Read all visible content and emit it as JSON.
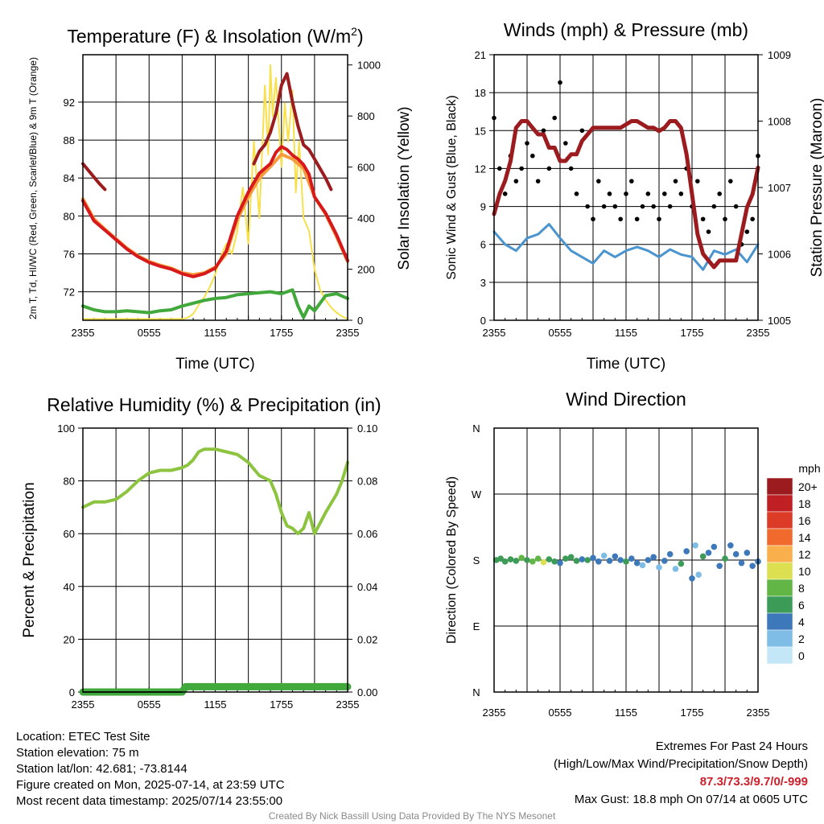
{
  "chart_data": [
    {
      "type": "line",
      "title": "Temperature (F) & Insolation (W/m²)",
      "xlabel": "Time (UTC)",
      "ylabel": "2m T, Td, HI/WC (Red, Green, Scarlet/Blue) & 9m T (Orange)",
      "ylabel_right": "Solar Insolation (Yellow)",
      "x_ticks": [
        "2355",
        "0555",
        "1155",
        "1755",
        "2355"
      ],
      "y_ticks": [
        72,
        76,
        80,
        84,
        88,
        92
      ],
      "ylim": [
        69,
        97
      ],
      "y2_ticks": [
        0,
        200,
        400,
        600,
        800,
        1000
      ],
      "y2lim": [
        0,
        1040
      ],
      "series": [
        {
          "name": "2m T",
          "color": "#d7191c",
          "axis": "left",
          "x": [
            0,
            1,
            2,
            3,
            4,
            5,
            6,
            7,
            8,
            9,
            10,
            11,
            12,
            13,
            14,
            15,
            16,
            17,
            17.5,
            18,
            18.5,
            19,
            19.5,
            20,
            20.5,
            21,
            22,
            23,
            24
          ],
          "values": [
            81.6,
            79.5,
            78.5,
            77.5,
            76.5,
            75.7,
            75.1,
            74.7,
            74.4,
            73.9,
            73.6,
            73.9,
            74.5,
            76.3,
            80.0,
            82.5,
            84.5,
            85.5,
            86.7,
            87.3,
            87.0,
            86.4,
            86.0,
            85.4,
            84.4,
            82.0,
            80.3,
            78.0,
            75.3
          ]
        },
        {
          "name": "9m T",
          "color": "#f59b3c",
          "axis": "left",
          "x": [
            0,
            1,
            2,
            3,
            4,
            5,
            6,
            7,
            8,
            9,
            10,
            11,
            12,
            13,
            14,
            15,
            16,
            17,
            18,
            19,
            20,
            21,
            22,
            23,
            24
          ],
          "values": [
            81.8,
            79.7,
            78.6,
            77.6,
            76.6,
            75.8,
            75.2,
            74.8,
            74.5,
            74.0,
            73.8,
            74.0,
            74.6,
            76.0,
            79.6,
            82.0,
            84.0,
            85.2,
            86.5,
            86.0,
            85.0,
            82.0,
            80.2,
            77.8,
            75.2
          ]
        },
        {
          "name": "Td",
          "color": "#41a83b",
          "axis": "left",
          "x": [
            0,
            0.5,
            1,
            2,
            3,
            4,
            5,
            6,
            7,
            8,
            9,
            10,
            11,
            12,
            13,
            14,
            15,
            16,
            17,
            18,
            19,
            19.5,
            20,
            20.5,
            21,
            22,
            23,
            24
          ],
          "values": [
            70.5,
            70.3,
            70.1,
            69.9,
            69.9,
            70.0,
            69.9,
            69.8,
            70.0,
            70.1,
            70.5,
            70.8,
            71.1,
            71.3,
            71.4,
            71.7,
            71.8,
            71.9,
            72.0,
            71.8,
            72.2,
            70.5,
            69.3,
            70.5,
            70.0,
            71.6,
            71.8,
            71.3
          ]
        },
        {
          "name": "HI",
          "color": "#9b1b1f",
          "axis": "left",
          "x": [
            0,
            0.5,
            1,
            1.5,
            2,
            15.5,
            16,
            16.5,
            17,
            17.5,
            18,
            18.5,
            19,
            19.5,
            20,
            20.5,
            21,
            21.5,
            22,
            22.5
          ],
          "values": [
            85.5,
            84.8,
            84.1,
            83.4,
            82.8,
            85.5,
            86.8,
            87.5,
            88.8,
            90.8,
            93.8,
            95.0,
            92.0,
            89.5,
            87.5,
            87.0,
            86.0,
            85.0,
            84.0,
            82.8
          ]
        },
        {
          "name": "Solar Insolation",
          "color": "#f7e04a",
          "axis": "right",
          "x": [
            0,
            1,
            2,
            3,
            4,
            5,
            6,
            7,
            8,
            9,
            9.5,
            10,
            10.5,
            11,
            11.5,
            12,
            12.5,
            13,
            13.5,
            14,
            14.5,
            15,
            15.5,
            16,
            16.5,
            16.8,
            17,
            17.2,
            17.5,
            18,
            18.3,
            18.6,
            19,
            19.3,
            19.6,
            20,
            20.5,
            21,
            21.5,
            22,
            22.5,
            23,
            23.5,
            24
          ],
          "values": [
            5,
            5,
            5,
            5,
            5,
            5,
            5,
            5,
            5,
            5,
            10,
            25,
            60,
            90,
            130,
            180,
            250,
            300,
            260,
            350,
            520,
            300,
            700,
            400,
            920,
            650,
            1000,
            800,
            950,
            600,
            850,
            700,
            900,
            500,
            700,
            400,
            350,
            200,
            120,
            80,
            50,
            30,
            15,
            5
          ]
        }
      ]
    },
    {
      "type": "line",
      "title": "Winds (mph) & Pressure (mb)",
      "xlabel": "Time (UTC)",
      "ylabel": "Sonic Wind & Gust (Blue, Black)",
      "ylabel_right": "Station Pressure (Maroon)",
      "x_ticks": [
        "2355",
        "0555",
        "1155",
        "1755",
        "2355"
      ],
      "y_ticks": [
        0,
        3,
        6,
        9,
        12,
        15,
        18,
        21
      ],
      "ylim": [
        0,
        21
      ],
      "y2_ticks": [
        1005,
        1006,
        1007,
        1008,
        1009
      ],
      "y2lim": [
        1005,
        1009
      ],
      "series": [
        {
          "name": "Wind",
          "color": "#4a94cf",
          "axis": "left",
          "x": [
            0,
            1,
            2,
            3,
            4,
            5,
            6,
            7,
            8,
            9,
            10,
            11,
            12,
            13,
            14,
            15,
            16,
            17,
            18,
            19,
            20,
            21,
            22,
            23,
            24
          ],
          "values": [
            7.0,
            6.0,
            5.5,
            6.5,
            6.8,
            7.6,
            6.5,
            5.5,
            5.0,
            4.5,
            5.5,
            5.0,
            5.5,
            5.8,
            5.5,
            5.0,
            5.6,
            5.2,
            5.0,
            4.0,
            5.5,
            5.2,
            5.6,
            4.6,
            6.0
          ]
        },
        {
          "name": "Gust",
          "color": "#000000",
          "axis": "left",
          "x": [
            0,
            0.5,
            1,
            1.5,
            2,
            2.5,
            3,
            3.5,
            4,
            4.5,
            5,
            5.5,
            6,
            6.5,
            7,
            7.5,
            8,
            8.5,
            9,
            9.5,
            10,
            10.5,
            11,
            11.5,
            12,
            12.5,
            13,
            13.5,
            14,
            14.5,
            15,
            15.5,
            16,
            16.5,
            17,
            17.5,
            18,
            18.5,
            19,
            19.5,
            20,
            20.5,
            21,
            21.5,
            22,
            22.5,
            23,
            23.5,
            24
          ],
          "values": [
            16,
            12,
            10,
            13,
            11,
            12,
            14,
            13,
            11,
            15,
            12,
            16,
            18.8,
            14,
            12,
            10,
            15,
            9,
            8,
            11,
            9,
            10,
            9,
            8,
            10,
            11,
            8,
            9,
            10,
            9,
            8,
            10,
            9,
            11,
            10,
            12,
            9,
            11,
            8,
            7,
            9,
            10,
            8,
            11,
            9,
            6,
            7,
            8,
            13
          ]
        },
        {
          "name": "Station Pressure",
          "color": "#9b1b1f",
          "axis": "right",
          "x": [
            0,
            0.5,
            1,
            1.5,
            2,
            2.5,
            3,
            3.5,
            4,
            4.5,
            5,
            5.5,
            6,
            6.5,
            7,
            7.5,
            8,
            8.5,
            9,
            9.5,
            10,
            10.5,
            11,
            11.5,
            12,
            12.5,
            13,
            13.5,
            14,
            14.5,
            15,
            15.5,
            16,
            16.5,
            17,
            17.5,
            18,
            18.5,
            19,
            19.5,
            20,
            20.5,
            21,
            21.5,
            22,
            22.5,
            23,
            23.5,
            24
          ],
          "values": [
            1006.6,
            1006.9,
            1007.1,
            1007.4,
            1007.9,
            1008.0,
            1008.0,
            1007.9,
            1007.8,
            1007.8,
            1007.6,
            1007.6,
            1007.4,
            1007.4,
            1007.5,
            1007.5,
            1007.7,
            1007.8,
            1007.9,
            1007.9,
            1007.9,
            1007.9,
            1007.9,
            1007.9,
            1007.95,
            1008.0,
            1008.0,
            1007.95,
            1007.9,
            1007.9,
            1007.85,
            1007.9,
            1008.0,
            1008.0,
            1007.9,
            1007.5,
            1006.9,
            1006.3,
            1006.0,
            1005.9,
            1005.8,
            1005.9,
            1005.9,
            1005.9,
            1005.9,
            1006.3,
            1006.7,
            1006.9,
            1007.3
          ]
        }
      ]
    },
    {
      "type": "area",
      "title": "Relative Humidity (%) & Precipitation (in)",
      "ylabel": "Percent & Precipitation",
      "x_ticks": [
        "2355",
        "0555",
        "1155",
        "1755",
        "2355"
      ],
      "y_ticks": [
        0,
        20,
        40,
        60,
        80,
        100
      ],
      "ylim": [
        0,
        100
      ],
      "y2_ticks": [
        "0.00",
        "0.02",
        "0.04",
        "0.06",
        "0.08",
        "0.10"
      ],
      "y2lim": [
        0,
        0.1
      ],
      "series": [
        {
          "name": "Relative Humidity",
          "color": "#8cc43f",
          "axis": "left",
          "x": [
            0,
            0.5,
            1,
            2,
            3,
            4,
            5,
            6,
            7,
            8,
            9,
            9.5,
            10,
            10.5,
            11,
            12,
            13,
            14,
            15,
            16,
            16.5,
            17,
            17.5,
            18,
            18.5,
            19,
            19.5,
            20,
            20.5,
            21,
            22,
            23,
            23.5,
            24
          ],
          "values": [
            70,
            71,
            72,
            72,
            73,
            76,
            80,
            83,
            84,
            84,
            85,
            86,
            88,
            91,
            92,
            92,
            91,
            90,
            87,
            82,
            81,
            80,
            75,
            68,
            63,
            62,
            60,
            62,
            68,
            60,
            68,
            75,
            80,
            87
          ]
        },
        {
          "name": "Precipitation",
          "color": "#41a83b",
          "axis": "left",
          "x": [
            0,
            9,
            9.3,
            24
          ],
          "values": [
            0,
            0,
            2,
            2
          ]
        }
      ]
    },
    {
      "type": "scatter",
      "title": "Wind Direction",
      "ylabel": "Direction (Colored By Speed)",
      "x_ticks": [
        "2355",
        "0555",
        "1155",
        "1755",
        "2355"
      ],
      "y_ticks": [
        "N",
        "E",
        "S",
        "W",
        "N"
      ],
      "legend_title": "mph",
      "legend_labels": [
        "0",
        "2",
        "4",
        "6",
        "8",
        "10",
        "12",
        "14",
        "16",
        "18",
        "20+"
      ],
      "legend_colors": [
        "#c4e7f7",
        "#7fbde6",
        "#3d78bb",
        "#3d9b58",
        "#62b646",
        "#dce050",
        "#f9b04c",
        "#ef6a2c",
        "#dc3b27",
        "#c01f23",
        "#9b1b1f"
      ],
      "legend_position": "right",
      "points": [
        {
          "x": 0.2,
          "dir": 180,
          "speed": 6
        },
        {
          "x": 0.6,
          "dir": 182,
          "speed": 7
        },
        {
          "x": 1.0,
          "dir": 178,
          "speed": 6
        },
        {
          "x": 1.5,
          "dir": 181,
          "speed": 7
        },
        {
          "x": 2.0,
          "dir": 179,
          "speed": 6
        },
        {
          "x": 2.5,
          "dir": 183,
          "speed": 8
        },
        {
          "x": 3.0,
          "dir": 180,
          "speed": 7
        },
        {
          "x": 3.5,
          "dir": 178,
          "speed": 9
        },
        {
          "x": 4.0,
          "dir": 182,
          "speed": 8
        },
        {
          "x": 4.5,
          "dir": 177,
          "speed": 10
        },
        {
          "x": 5.0,
          "dir": 181,
          "speed": 7
        },
        {
          "x": 5.5,
          "dir": 178,
          "speed": 6
        },
        {
          "x": 6.0,
          "dir": 176,
          "speed": 5
        },
        {
          "x": 6.5,
          "dir": 182,
          "speed": 6
        },
        {
          "x": 7.0,
          "dir": 184,
          "speed": 7
        },
        {
          "x": 7.5,
          "dir": 179,
          "speed": 6
        },
        {
          "x": 8.0,
          "dir": 181,
          "speed": 5
        },
        {
          "x": 8.5,
          "dir": 180,
          "speed": 6
        },
        {
          "x": 9.0,
          "dir": 183,
          "speed": 5
        },
        {
          "x": 9.5,
          "dir": 178,
          "speed": 4
        },
        {
          "x": 10.0,
          "dir": 186,
          "speed": 3
        },
        {
          "x": 10.5,
          "dir": 179,
          "speed": 4
        },
        {
          "x": 11.0,
          "dir": 185,
          "speed": 5
        },
        {
          "x": 11.5,
          "dir": 180,
          "speed": 4
        },
        {
          "x": 12.0,
          "dir": 178,
          "speed": 6
        },
        {
          "x": 12.5,
          "dir": 182,
          "speed": 5
        },
        {
          "x": 13.0,
          "dir": 176,
          "speed": 4
        },
        {
          "x": 13.5,
          "dir": 173,
          "speed": 3
        },
        {
          "x": 14.0,
          "dir": 180,
          "speed": 5
        },
        {
          "x": 14.5,
          "dir": 184,
          "speed": 4
        },
        {
          "x": 15.0,
          "dir": 170,
          "speed": 3
        },
        {
          "x": 15.5,
          "dir": 179,
          "speed": 5
        },
        {
          "x": 16.0,
          "dir": 188,
          "speed": 4
        },
        {
          "x": 16.5,
          "dir": 168,
          "speed": 3
        },
        {
          "x": 17.0,
          "dir": 175,
          "speed": 6
        },
        {
          "x": 17.5,
          "dir": 192,
          "speed": 4
        },
        {
          "x": 18.0,
          "dir": 155,
          "speed": 4
        },
        {
          "x": 18.3,
          "dir": 200,
          "speed": 3
        },
        {
          "x": 18.6,
          "dir": 160,
          "speed": 2
        },
        {
          "x": 19.0,
          "dir": 185,
          "speed": 6
        },
        {
          "x": 19.5,
          "dir": 190,
          "speed": 5
        },
        {
          "x": 20.0,
          "dir": 198,
          "speed": 4
        },
        {
          "x": 20.5,
          "dir": 172,
          "speed": 5
        },
        {
          "x": 21.0,
          "dir": 182,
          "speed": 6
        },
        {
          "x": 21.5,
          "dir": 200,
          "speed": 4
        },
        {
          "x": 22.0,
          "dir": 188,
          "speed": 5
        },
        {
          "x": 22.5,
          "dir": 176,
          "speed": 4
        },
        {
          "x": 23.0,
          "dir": 190,
          "speed": 5
        },
        {
          "x": 23.5,
          "dir": 172,
          "speed": 4
        },
        {
          "x": 24.0,
          "dir": 178,
          "speed": 5
        }
      ]
    }
  ],
  "info": {
    "location": "Location: ETEC Test Site",
    "elevation": "Station elevation: 75 m",
    "latlon": "Station lat/lon: 42.681; -73.8144",
    "created": "Figure created on Mon, 2025-07-14, at 23:59 UTC",
    "recent": "Most recent data timestamp: 2025/07/14 23:55:00"
  },
  "extremes": {
    "title": "Extremes For Past 24 Hours",
    "subtitle": "(High/Low/Max Wind/Precipitation/Snow Depth)",
    "values": "87.3/73.3/9.7/0/-999",
    "max_gust": "Max Gust: 18.8 mph On 07/14 at 0605 UTC"
  },
  "credit": "Created By Nick Bassill Using Data Provided By The NYS Mesonet"
}
